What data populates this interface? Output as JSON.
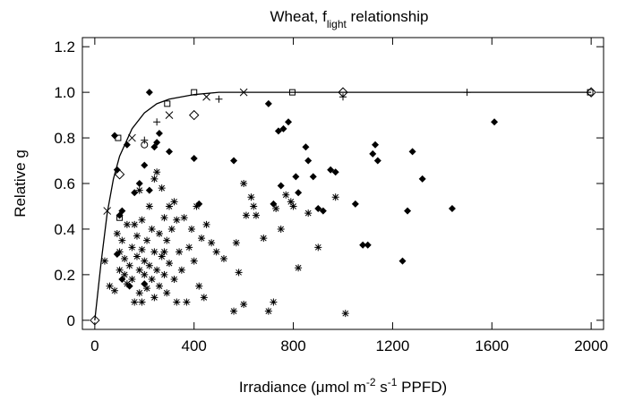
{
  "chart_data": {
    "type": "scatter",
    "title_parts": [
      "Wheat, f",
      "light",
      " relationship"
    ],
    "x_label_parts": [
      "Irradiance (μmol m",
      "-2",
      " s",
      "-1",
      " PPFD)"
    ],
    "y_label": "Relative g",
    "xlim": [
      -50,
      2050
    ],
    "ylim": [
      -0.04,
      1.24
    ],
    "xticks": [
      0,
      400,
      800,
      1200,
      1600,
      2000
    ],
    "yticks": [
      0,
      0.2,
      0.4,
      0.6,
      0.8,
      {
        "value": 1,
        "label": "1.0"
      },
      1.2
    ],
    "series": [
      {
        "marker": "line",
        "color": "#000000",
        "x": [
          0,
          25,
          50,
          75,
          100,
          150,
          200,
          250,
          300,
          400,
          500,
          2000
        ],
        "values": [
          0,
          0.25,
          0.47,
          0.62,
          0.72,
          0.84,
          0.91,
          0.95,
          0.97,
          0.99,
          1.0,
          1.0
        ]
      },
      {
        "marker": "filled-diamond",
        "color": "#000000",
        "x": [
          80,
          90,
          100,
          110,
          130,
          90,
          110,
          140,
          160,
          180,
          200,
          220,
          240,
          250,
          260,
          220,
          300,
          400,
          420,
          560,
          700,
          740,
          760,
          780,
          720,
          750,
          820,
          850,
          860,
          880,
          900,
          920,
          950,
          970,
          1050,
          1080,
          1100,
          1120,
          1130,
          1140,
          1240,
          1260,
          1280,
          1320,
          1440,
          1610,
          810,
          200
        ],
        "values": [
          0.81,
          0.66,
          0.46,
          0.48,
          0.77,
          0.29,
          0.18,
          0.15,
          0.56,
          0.6,
          0.68,
          1.0,
          0.76,
          0.78,
          0.82,
          0.57,
          0.74,
          0.71,
          0.51,
          0.7,
          0.95,
          0.83,
          0.84,
          0.87,
          0.51,
          0.59,
          0.56,
          0.76,
          0.7,
          0.63,
          0.49,
          0.48,
          0.66,
          0.65,
          0.51,
          0.33,
          0.33,
          0.73,
          0.77,
          0.7,
          0.26,
          0.48,
          0.74,
          0.62,
          0.49,
          0.87,
          0.63,
          0.16
        ]
      },
      {
        "marker": "asterisk",
        "color": "#000000",
        "x": [
          40,
          60,
          80,
          90,
          100,
          100,
          110,
          120,
          120,
          130,
          130,
          140,
          150,
          150,
          160,
          160,
          170,
          170,
          180,
          180,
          190,
          190,
          200,
          200,
          210,
          210,
          220,
          220,
          230,
          230,
          240,
          240,
          250,
          250,
          260,
          260,
          270,
          270,
          280,
          280,
          290,
          290,
          300,
          300,
          310,
          320,
          330,
          340,
          350,
          360,
          370,
          380,
          390,
          400,
          410,
          420,
          430,
          440,
          450,
          470,
          490,
          520,
          560,
          570,
          580,
          600,
          610,
          630,
          650,
          680,
          700,
          720,
          730,
          750,
          770,
          790,
          800,
          820,
          860,
          900,
          970,
          1010,
          600,
          640,
          180,
          240,
          320,
          280,
          190,
          330
        ],
        "values": [
          0.26,
          0.15,
          0.13,
          0.38,
          0.22,
          0.3,
          0.35,
          0.2,
          0.27,
          0.42,
          0.16,
          0.24,
          0.32,
          0.18,
          0.42,
          0.08,
          0.28,
          0.37,
          0.22,
          0.12,
          0.44,
          0.31,
          0.2,
          0.26,
          0.35,
          0.14,
          0.5,
          0.24,
          0.4,
          0.18,
          0.3,
          0.1,
          0.65,
          0.22,
          0.38,
          0.15,
          0.58,
          0.28,
          0.45,
          0.2,
          0.35,
          0.12,
          0.5,
          0.25,
          0.4,
          0.18,
          0.44,
          0.3,
          0.22,
          0.45,
          0.08,
          0.32,
          0.4,
          0.26,
          0.5,
          0.15,
          0.36,
          0.1,
          0.42,
          0.34,
          0.3,
          0.27,
          0.04,
          0.34,
          0.21,
          0.6,
          0.46,
          0.54,
          0.46,
          0.36,
          0.04,
          0.08,
          0.49,
          0.4,
          0.55,
          0.52,
          0.5,
          0.23,
          0.47,
          0.32,
          0.54,
          0.03,
          0.07,
          0.5,
          0.57,
          0.62,
          0.52,
          0.3,
          0.08,
          0.08
        ]
      },
      {
        "marker": "open-square",
        "color": "#000000",
        "x": [
          100,
          94,
          400,
          292,
          796,
          1996
        ],
        "values": [
          0.45,
          0.8,
          1.0,
          0.95,
          1.0,
          1.0
        ]
      },
      {
        "marker": "cross",
        "color": "#000000",
        "x": [
          50,
          150,
          300,
          450,
          600
        ],
        "values": [
          0.48,
          0.8,
          0.9,
          0.98,
          1.0
        ]
      },
      {
        "marker": "plus",
        "color": "#000000",
        "x": [
          200,
          250,
          500,
          1000,
          1500
        ],
        "values": [
          0.79,
          0.87,
          0.97,
          0.98,
          1.0
        ]
      },
      {
        "marker": "open-diamond",
        "color": "#000000",
        "x": [
          0,
          100,
          400,
          1000,
          2000
        ],
        "values": [
          0,
          0.64,
          0.9,
          1.0,
          1.0
        ]
      },
      {
        "marker": "open-circle",
        "color": "#000000",
        "x": [
          200
        ],
        "values": [
          0.77
        ]
      }
    ]
  }
}
